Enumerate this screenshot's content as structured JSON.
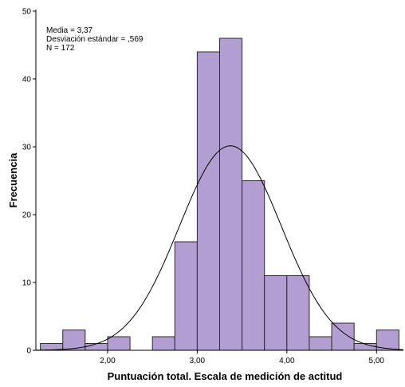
{
  "chart_data": {
    "type": "bar",
    "subtype": "histogram",
    "xlabel": "Puntuación total. Escala de medición de actitud",
    "ylabel": "Frecuencia",
    "xlim": [
      1.2,
      5.3
    ],
    "ylim": [
      0,
      50
    ],
    "x_ticks": [
      {
        "value": 2.0,
        "label": "2,00"
      },
      {
        "value": 3.0,
        "label": "3,00"
      },
      {
        "value": 4.0,
        "label": "4,00"
      },
      {
        "value": 5.0,
        "label": "5,00"
      }
    ],
    "y_ticks": [
      {
        "value": 0,
        "label": "0"
      },
      {
        "value": 10,
        "label": "10"
      },
      {
        "value": 20,
        "label": "20"
      },
      {
        "value": 30,
        "label": "30"
      },
      {
        "value": 40,
        "label": "40"
      },
      {
        "value": 50,
        "label": "50"
      }
    ],
    "bin_width": 0.25,
    "bins": [
      {
        "start": 1.25,
        "count": 1
      },
      {
        "start": 1.5,
        "count": 3
      },
      {
        "start": 1.75,
        "count": 1
      },
      {
        "start": 2.0,
        "count": 2
      },
      {
        "start": 2.25,
        "count": 0
      },
      {
        "start": 2.5,
        "count": 2
      },
      {
        "start": 2.75,
        "count": 16
      },
      {
        "start": 3.0,
        "count": 44
      },
      {
        "start": 3.25,
        "count": 46
      },
      {
        "start": 3.5,
        "count": 25
      },
      {
        "start": 3.75,
        "count": 11
      },
      {
        "start": 4.0,
        "count": 11
      },
      {
        "start": 4.25,
        "count": 2
      },
      {
        "start": 4.5,
        "count": 4
      },
      {
        "start": 4.75,
        "count": 1
      },
      {
        "start": 5.0,
        "count": 3
      }
    ],
    "normal_curve": {
      "mean": 3.37,
      "sd": 0.569,
      "n": 172
    },
    "stats": {
      "mean_label": "Media = 3,37",
      "sd_label": "Desviación estándar = ,569",
      "n_label": "N = 172"
    },
    "grid": false,
    "colors": {
      "bar_fill": "#b39ed1",
      "bar_stroke": "#2b2b2b",
      "curve": "#000000",
      "axis": "#000000"
    }
  }
}
